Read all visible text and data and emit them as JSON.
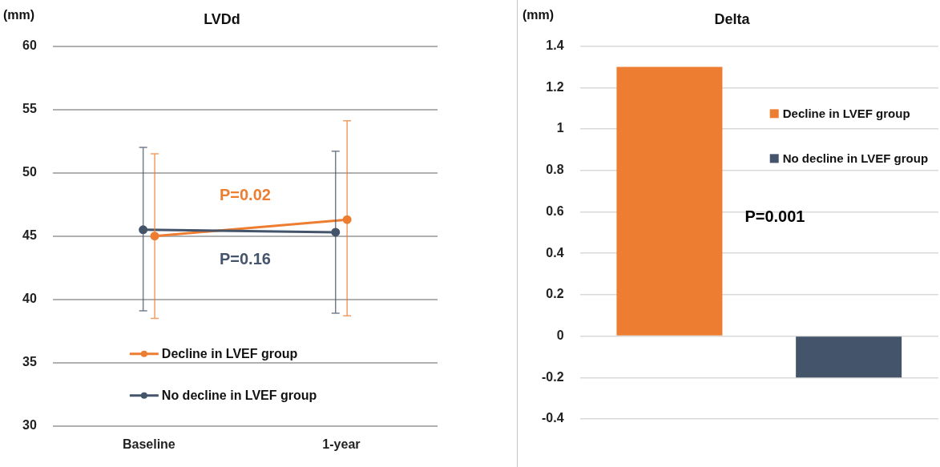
{
  "chart_data": [
    {
      "type": "line",
      "title": "LVDd",
      "ylabel": "(mm)",
      "categories": [
        "Baseline",
        "1-year"
      ],
      "series": [
        {
          "name": "Decline in LVEF group",
          "color": "#ed7d31",
          "values": [
            45.0,
            46.3
          ],
          "errors": [
            [
              38.5,
              51.5
            ],
            [
              38.7,
              54.1
            ]
          ]
        },
        {
          "name": "No decline in LVEF group",
          "color": "#44546a",
          "values": [
            45.5,
            45.3
          ],
          "errors": [
            [
              39.1,
              52.0
            ],
            [
              38.9,
              51.7
            ]
          ]
        }
      ],
      "ylim": [
        30,
        60
      ],
      "yticks": [
        30,
        35,
        40,
        45,
        50,
        55,
        60
      ],
      "grid": "y",
      "legend": "bottom",
      "marker": "circle",
      "line_style": "solid",
      "annotations": [
        "P=0.02",
        "P=0.16"
      ]
    },
    {
      "type": "bar",
      "title": "Delta",
      "ylabel": "(mm)",
      "categories": [
        null
      ],
      "series": [
        {
          "name": "Decline in LVEF group",
          "color": "#ed7d31",
          "values": [
            1.3
          ]
        },
        {
          "name": "No decline in LVEF group",
          "color": "#44546a",
          "values": [
            -0.2
          ]
        }
      ],
      "ylim": [
        -0.4,
        1.4
      ],
      "yticks": [
        -0.4,
        -0.2,
        0,
        0.2,
        0.4,
        0.6,
        0.8,
        1,
        1.2,
        1.4
      ],
      "grid": "y",
      "legend": "top right",
      "tick_labels": "y",
      "annotations": [
        "P=0.001"
      ]
    }
  ]
}
